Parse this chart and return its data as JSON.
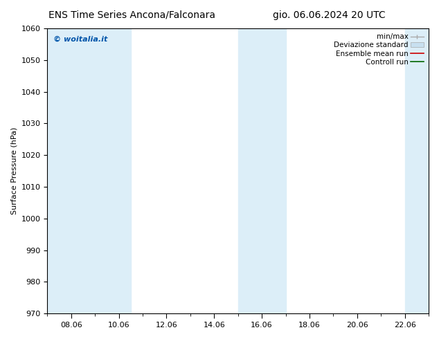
{
  "title_left": "ENS Time Series Ancona/Falconara",
  "title_right": "gio. 06.06.2024 20 UTC",
  "ylabel": "Surface Pressure (hPa)",
  "ylim": [
    970,
    1060
  ],
  "yticks": [
    970,
    980,
    990,
    1000,
    1010,
    1020,
    1030,
    1040,
    1050,
    1060
  ],
  "xtick_labels": [
    "08.06",
    "10.06",
    "12.06",
    "14.06",
    "16.06",
    "18.06",
    "20.06",
    "22.06"
  ],
  "xtick_days": [
    8,
    10,
    12,
    14,
    16,
    18,
    20,
    22
  ],
  "xlim_days": [
    7,
    23
  ],
  "shaded_bands": [
    {
      "d0": 7.0,
      "d1": 9.5
    },
    {
      "d0": 9.5,
      "d1": 10.5
    },
    {
      "d0": 15.0,
      "d1": 16.5
    },
    {
      "d0": 16.5,
      "d1": 17.0
    },
    {
      "d0": 22.0,
      "d1": 23.0
    }
  ],
  "band_color": "#dceef8",
  "background_color": "#ffffff",
  "copyright_text": "© woitalia.it",
  "copyright_color": "#0055aa",
  "legend_labels": [
    "min/max",
    "Deviazione standard",
    "Ensemble mean run",
    "Controll run"
  ],
  "title_fontsize": 10,
  "axis_label_fontsize": 8,
  "tick_fontsize": 8,
  "legend_fontsize": 7.5
}
